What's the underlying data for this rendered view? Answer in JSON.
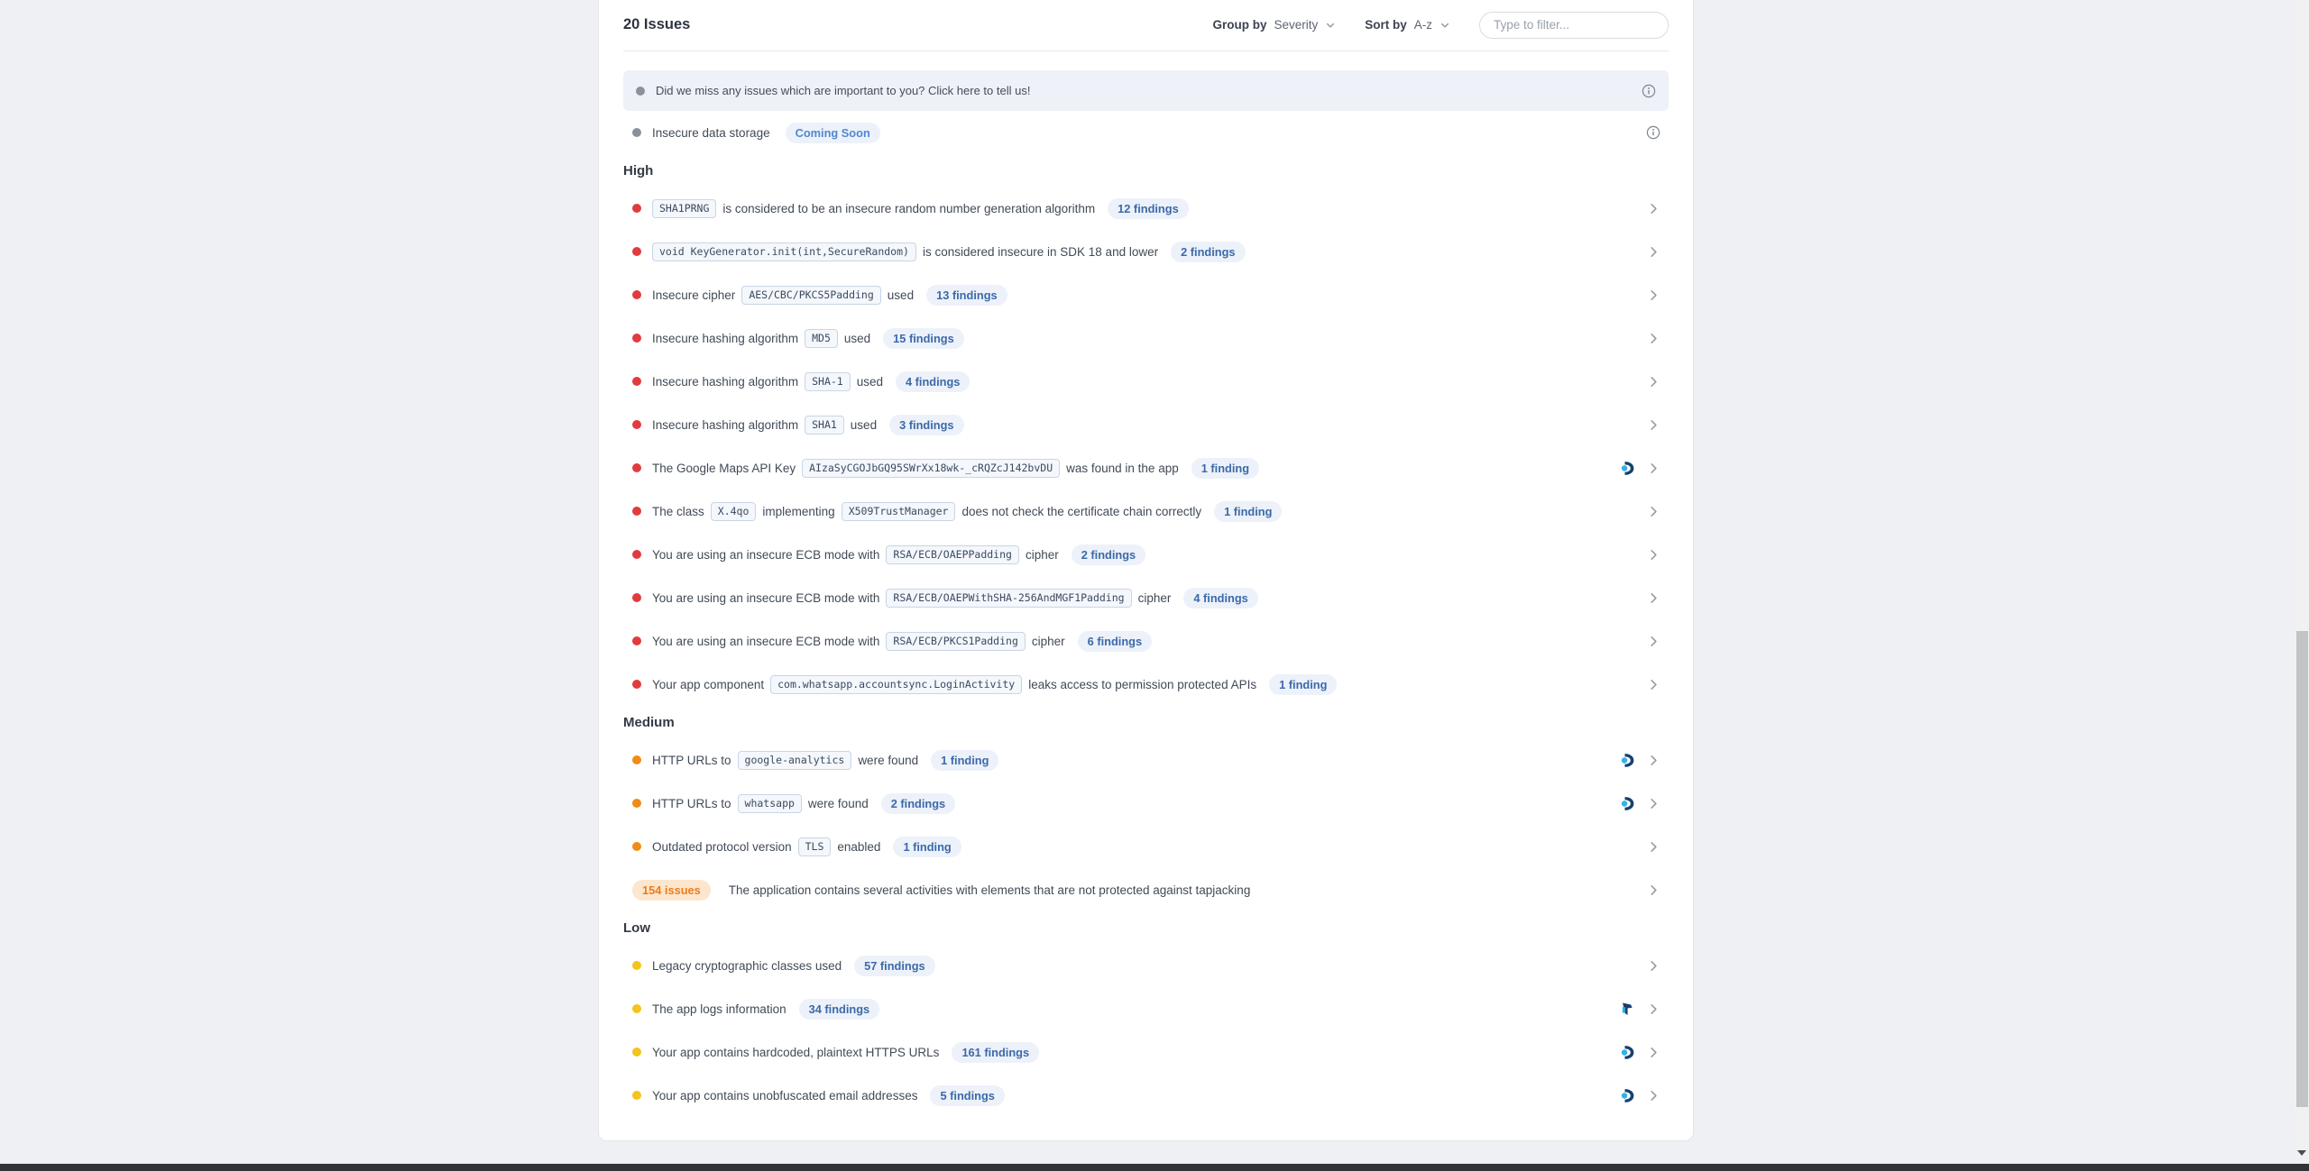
{
  "page": {
    "title": "20 Issues"
  },
  "toolbar": {
    "group_by_label": "Group by",
    "group_by_value": "Severity",
    "sort_by_label": "Sort by",
    "sort_by_value": "A-z",
    "filter_placeholder": "Type to filter..."
  },
  "banner": {
    "text": "Did we miss any issues which are important to you? Click here to tell us!"
  },
  "pre_rows": [
    {
      "dot": "gray",
      "text": "Insecure data storage",
      "badge": "Coming Soon"
    }
  ],
  "sections": [
    {
      "title": "High",
      "dot": "red",
      "rows": [
        {
          "parts": [
            [
              "code",
              "SHA1PRNG"
            ],
            [
              "text",
              "is considered to be an insecure random number generation algorithm"
            ]
          ],
          "findings": "12 findings"
        },
        {
          "parts": [
            [
              "code",
              "void KeyGenerator.init(int,SecureRandom)"
            ],
            [
              "text",
              "is considered insecure in SDK 18 and lower"
            ]
          ],
          "findings": "2 findings"
        },
        {
          "parts": [
            [
              "text",
              "Insecure cipher"
            ],
            [
              "code",
              "AES/CBC/PKCS5Padding"
            ],
            [
              "text",
              "used"
            ]
          ],
          "findings": "13 findings"
        },
        {
          "parts": [
            [
              "text",
              "Insecure hashing algorithm"
            ],
            [
              "code",
              "MD5"
            ],
            [
              "text",
              "used"
            ]
          ],
          "findings": "15 findings"
        },
        {
          "parts": [
            [
              "text",
              "Insecure hashing algorithm"
            ],
            [
              "code",
              "SHA-1"
            ],
            [
              "text",
              "used"
            ]
          ],
          "findings": "4 findings"
        },
        {
          "parts": [
            [
              "text",
              "Insecure hashing algorithm"
            ],
            [
              "code",
              "SHA1"
            ],
            [
              "text",
              "used"
            ]
          ],
          "findings": "3 findings"
        },
        {
          "parts": [
            [
              "text",
              "The Google Maps API Key"
            ],
            [
              "code",
              "AIzaSyCGOJbGQ95SWrXx18wk-_cRQZcJ142bvDU"
            ],
            [
              "text",
              "was found in the app"
            ]
          ],
          "findings": "1 finding",
          "logo": "crescent"
        },
        {
          "parts": [
            [
              "text",
              "The class"
            ],
            [
              "code",
              "X.4qo"
            ],
            [
              "text",
              "implementing"
            ],
            [
              "code",
              "X509TrustManager"
            ],
            [
              "text",
              "does not check the certificate chain correctly"
            ]
          ],
          "findings": "1 finding"
        },
        {
          "parts": [
            [
              "text",
              "You are using an insecure ECB mode with"
            ],
            [
              "code",
              "RSA/ECB/OAEPPadding"
            ],
            [
              "text",
              "cipher"
            ]
          ],
          "findings": "2 findings"
        },
        {
          "parts": [
            [
              "text",
              "You are using an insecure ECB mode with"
            ],
            [
              "code",
              "RSA/ECB/OAEPWithSHA-256AndMGF1Padding"
            ],
            [
              "text",
              "cipher"
            ]
          ],
          "findings": "4 findings"
        },
        {
          "parts": [
            [
              "text",
              "You are using an insecure ECB mode with"
            ],
            [
              "code",
              "RSA/ECB/PKCS1Padding"
            ],
            [
              "text",
              "cipher"
            ]
          ],
          "findings": "6 findings"
        },
        {
          "parts": [
            [
              "text",
              "Your app component"
            ],
            [
              "code",
              "com.whatsapp.accountsync.LoginActivity"
            ],
            [
              "text",
              "leaks access to permission protected APIs"
            ]
          ],
          "findings": "1 finding"
        }
      ]
    },
    {
      "title": "Medium",
      "dot": "orange",
      "rows": [
        {
          "parts": [
            [
              "text",
              "HTTP URLs to"
            ],
            [
              "code",
              "google-analytics"
            ],
            [
              "text",
              "were found"
            ]
          ],
          "findings": "1 finding",
          "logo": "crescent"
        },
        {
          "parts": [
            [
              "text",
              "HTTP URLs to"
            ],
            [
              "code",
              "whatsapp"
            ],
            [
              "text",
              "were found"
            ]
          ],
          "findings": "2 findings",
          "logo": "crescent"
        },
        {
          "parts": [
            [
              "text",
              "Outdated protocol version"
            ],
            [
              "code",
              "TLS"
            ],
            [
              "text",
              "enabled"
            ]
          ],
          "findings": "1 finding"
        },
        {
          "left_badge": "154 issues",
          "parts": [
            [
              "text",
              "The application contains several activities with elements that are not protected against tapjacking"
            ]
          ]
        }
      ]
    },
    {
      "title": "Low",
      "dot": "yellow",
      "rows": [
        {
          "parts": [
            [
              "text",
              "Legacy cryptographic classes used"
            ]
          ],
          "findings": "57 findings"
        },
        {
          "parts": [
            [
              "text",
              "The app logs information"
            ]
          ],
          "findings": "34 findings",
          "logo": "flag"
        },
        {
          "parts": [
            [
              "text",
              "Your app contains hardcoded, plaintext HTTPS URLs"
            ]
          ],
          "findings": "161 findings",
          "logo": "crescent"
        },
        {
          "parts": [
            [
              "text",
              "Your app contains unobfuscated email addresses"
            ]
          ],
          "findings": "5 findings",
          "logo": "crescent"
        }
      ]
    }
  ],
  "icons": {
    "info": "info-circle-icon",
    "chevron_right": "chevron-right-icon",
    "chevron_down": "chevron-down-icon",
    "crescent": "scanner-logo-icon",
    "flag": "scanner-logo-icon"
  },
  "colors": {
    "page_bg": "#eef0f4",
    "card_bg": "#ffffff",
    "card_border": "#e3e6eb",
    "severity_high": "#e23b3e",
    "severity_medium": "#f08c16",
    "severity_low": "#f3c41c",
    "severity_info": "#8b919c",
    "findings_text": "#3b6aa9",
    "findings_bg": "#edf1f9",
    "coming_soon_text": "#5288cf",
    "issues_badge_text": "#ee7c1b",
    "issues_badge_bg": "#fce6cd",
    "banner_bg": "#eef1f7",
    "heading_text": "#333a46",
    "row_text": "#414a57",
    "chip_text": "#3b4a61",
    "chip_bg": "#f4f7fb",
    "chip_border": "#c9d5e6",
    "bottom_bar": "#303338"
  }
}
